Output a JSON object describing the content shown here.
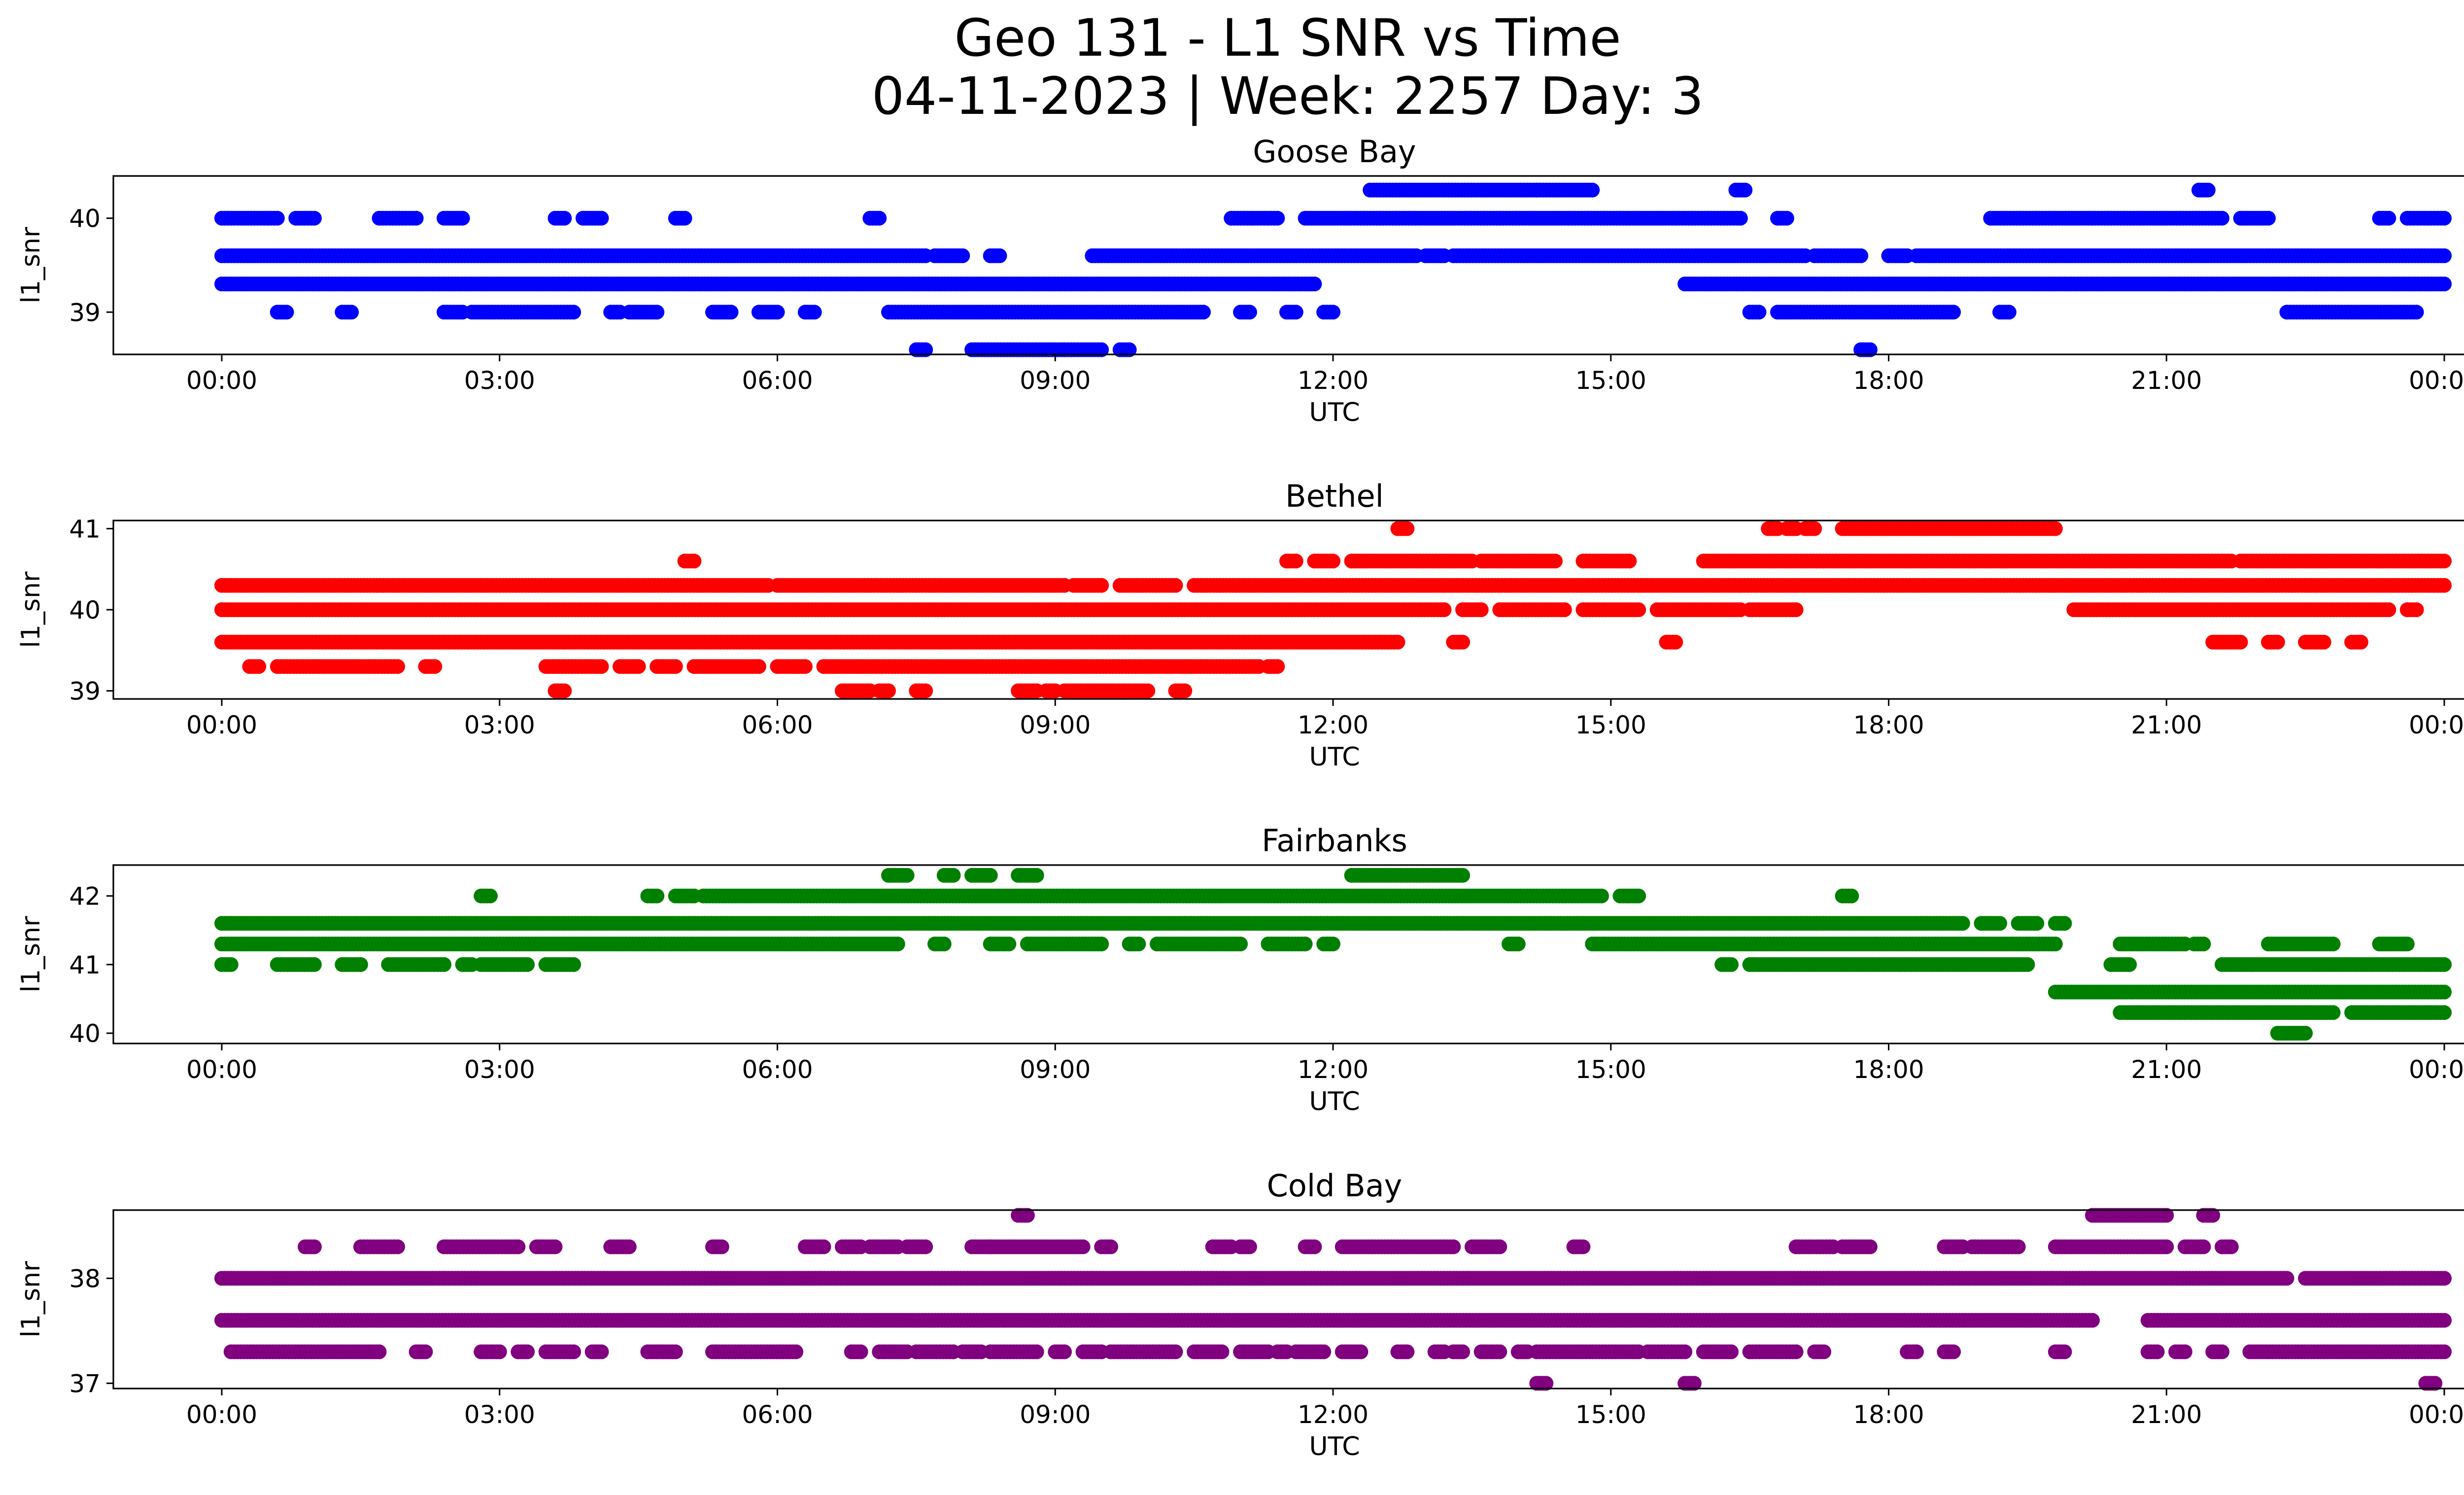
{
  "figure": {
    "title_line1": "Geo 131 - L1 SNR vs Time",
    "title_line2": "04-11-2023 | Week: 2257 Day: 3"
  },
  "chart_data": [
    {
      "type": "scatter",
      "title": "Goose Bay",
      "xlabel": "UTC",
      "ylabel": "l1_snr",
      "color": "#0000ff",
      "xlim": [
        "00:00",
        "24:00"
      ],
      "ylim": [
        38.55,
        40.45
      ],
      "x_ticks": [
        "00:00",
        "03:00",
        "06:00",
        "09:00",
        "12:00",
        "15:00",
        "18:00",
        "21:00",
        "00:00"
      ],
      "y_ticks": [
        39,
        40
      ],
      "series": [
        {
          "y": 40.3,
          "segments": [
            [
              12.4,
              14.2
            ],
            [
              14.2,
              14.8
            ],
            [
              16.35,
              16.45
            ],
            [
              21.35,
              21.45
            ]
          ]
        },
        {
          "y": 40.0,
          "segments": [
            [
              0.0,
              0.6
            ],
            [
              0.8,
              1.0
            ],
            [
              1.7,
              2.1
            ],
            [
              2.4,
              2.6
            ],
            [
              3.6,
              3.7
            ],
            [
              3.9,
              4.1
            ],
            [
              4.9,
              5.0
            ],
            [
              7.0,
              7.1
            ],
            [
              10.9,
              11.4
            ],
            [
              11.7,
              16.4
            ],
            [
              16.8,
              16.9
            ],
            [
              19.1,
              21.6
            ],
            [
              21.8,
              22.1
            ],
            [
              23.3,
              23.4
            ],
            [
              23.6,
              24.0
            ]
          ]
        },
        {
          "y": 39.6,
          "segments": [
            [
              0.0,
              7.6
            ],
            [
              7.7,
              8.0
            ],
            [
              8.3,
              8.4
            ],
            [
              9.4,
              12.9
            ],
            [
              13.0,
              13.2
            ],
            [
              13.3,
              17.1
            ],
            [
              17.2,
              17.7
            ],
            [
              18.0,
              18.2
            ],
            [
              18.3,
              24.0
            ]
          ]
        },
        {
          "y": 39.3,
          "segments": [
            [
              0.0,
              11.8
            ],
            [
              15.8,
              24.0
            ]
          ]
        },
        {
          "y": 39.0,
          "segments": [
            [
              0.6,
              0.7
            ],
            [
              1.3,
              1.4
            ],
            [
              2.4,
              2.6
            ],
            [
              2.7,
              3.8
            ],
            [
              4.2,
              4.3
            ],
            [
              4.4,
              4.7
            ],
            [
              5.3,
              5.5
            ],
            [
              5.8,
              6.0
            ],
            [
              6.3,
              6.4
            ],
            [
              7.2,
              10.6
            ],
            [
              11.0,
              11.1
            ],
            [
              11.5,
              11.6
            ],
            [
              11.9,
              12.0
            ],
            [
              16.5,
              16.6
            ],
            [
              16.8,
              18.7
            ],
            [
              19.2,
              19.3
            ],
            [
              22.3,
              23.7
            ]
          ]
        },
        {
          "y": 38.6,
          "segments": [
            [
              7.5,
              7.6
            ],
            [
              8.1,
              9.1
            ],
            [
              9.1,
              9.5
            ],
            [
              9.7,
              9.8
            ],
            [
              17.7,
              17.8
            ]
          ]
        }
      ]
    },
    {
      "type": "scatter",
      "title": "Bethel",
      "xlabel": "UTC",
      "ylabel": "l1_snr",
      "color": "#ff0000",
      "xlim": [
        "00:00",
        "24:00"
      ],
      "ylim": [
        38.9,
        41.1
      ],
      "x_ticks": [
        "00:00",
        "03:00",
        "06:00",
        "09:00",
        "12:00",
        "15:00",
        "18:00",
        "21:00",
        "00:00"
      ],
      "y_ticks": [
        39,
        40,
        41
      ],
      "series": [
        {
          "y": 41.0,
          "segments": [
            [
              12.7,
              12.8
            ],
            [
              16.7,
              16.8
            ],
            [
              16.9,
              17.0
            ],
            [
              17.1,
              17.2
            ],
            [
              17.5,
              19.8
            ]
          ]
        },
        {
          "y": 40.6,
          "segments": [
            [
              5.0,
              5.1
            ],
            [
              11.5,
              11.6
            ],
            [
              11.8,
              12.0
            ],
            [
              12.2,
              13.5
            ],
            [
              13.6,
              14.4
            ],
            [
              14.7,
              15.2
            ],
            [
              16.0,
              21.7
            ],
            [
              21.8,
              24.0
            ]
          ]
        },
        {
          "y": 40.3,
          "segments": [
            [
              0.0,
              5.9
            ],
            [
              6.0,
              9.1
            ],
            [
              9.2,
              9.5
            ],
            [
              9.7,
              10.3
            ],
            [
              10.5,
              24.0
            ]
          ]
        },
        {
          "y": 40.0,
          "segments": [
            [
              0.0,
              13.2
            ],
            [
              13.4,
              13.6
            ],
            [
              13.8,
              14.5
            ],
            [
              14.7,
              15.3
            ],
            [
              15.5,
              16.4
            ],
            [
              16.5,
              17.0
            ],
            [
              20.0,
              23.4
            ],
            [
              23.6,
              23.7
            ]
          ]
        },
        {
          "y": 39.6,
          "segments": [
            [
              0.0,
              12.7
            ],
            [
              13.3,
              13.4
            ],
            [
              15.6,
              15.7
            ],
            [
              21.5,
              21.8
            ],
            [
              22.1,
              22.2
            ],
            [
              22.5,
              22.7
            ],
            [
              23.0,
              23.1
            ]
          ]
        },
        {
          "y": 39.3,
          "segments": [
            [
              0.3,
              0.4
            ],
            [
              0.6,
              1.9
            ],
            [
              2.2,
              2.3
            ],
            [
              3.5,
              4.1
            ],
            [
              4.3,
              4.5
            ],
            [
              4.7,
              4.9
            ],
            [
              5.1,
              5.8
            ],
            [
              6.0,
              6.3
            ],
            [
              6.5,
              11.2
            ],
            [
              11.3,
              11.4
            ]
          ]
        },
        {
          "y": 39.0,
          "segments": [
            [
              3.6,
              3.7
            ],
            [
              6.7,
              7.0
            ],
            [
              7.1,
              7.2
            ],
            [
              7.5,
              7.6
            ],
            [
              8.6,
              8.8
            ],
            [
              8.9,
              9.0
            ],
            [
              9.1,
              10.0
            ],
            [
              10.3,
              10.4
            ]
          ]
        }
      ]
    },
    {
      "type": "scatter",
      "title": "Fairbanks",
      "xlabel": "UTC",
      "ylabel": "l1_snr",
      "color": "#008000",
      "xlim": [
        "00:00",
        "24:00"
      ],
      "ylim": [
        39.85,
        42.45
      ],
      "x_ticks": [
        "00:00",
        "03:00",
        "06:00",
        "09:00",
        "12:00",
        "15:00",
        "18:00",
        "21:00",
        "00:00"
      ],
      "y_ticks": [
        40,
        41,
        42
      ],
      "series": [
        {
          "y": 42.3,
          "segments": [
            [
              7.2,
              7.4
            ],
            [
              7.8,
              7.9
            ],
            [
              8.1,
              8.3
            ],
            [
              8.6,
              8.8
            ],
            [
              12.2,
              13.4
            ]
          ]
        },
        {
          "y": 42.0,
          "segments": [
            [
              2.8,
              2.9
            ],
            [
              4.6,
              4.7
            ],
            [
              4.9,
              5.1
            ],
            [
              5.2,
              14.9
            ],
            [
              15.1,
              15.3
            ],
            [
              17.5,
              17.6
            ]
          ]
        },
        {
          "y": 41.6,
          "segments": [
            [
              0.0,
              18.8
            ],
            [
              19.0,
              19.2
            ],
            [
              19.4,
              19.6
            ],
            [
              19.8,
              19.9
            ]
          ]
        },
        {
          "y": 41.3,
          "segments": [
            [
              0.0,
              7.3
            ],
            [
              7.7,
              7.8
            ],
            [
              8.3,
              8.5
            ],
            [
              8.7,
              9.5
            ],
            [
              9.8,
              9.9
            ],
            [
              10.1,
              11.0
            ],
            [
              11.3,
              11.7
            ],
            [
              11.9,
              12.0
            ],
            [
              13.9,
              14.0
            ],
            [
              14.8,
              19.8
            ],
            [
              20.5,
              21.2
            ],
            [
              21.3,
              21.4
            ],
            [
              22.1,
              22.8
            ],
            [
              23.3,
              23.6
            ]
          ]
        },
        {
          "y": 41.0,
          "segments": [
            [
              0.0,
              0.1
            ],
            [
              0.6,
              1.0
            ],
            [
              1.3,
              1.5
            ],
            [
              1.8,
              2.4
            ],
            [
              2.6,
              2.7
            ],
            [
              2.8,
              3.3
            ],
            [
              3.5,
              3.8
            ],
            [
              16.2,
              16.3
            ],
            [
              16.5,
              19.5
            ],
            [
              20.4,
              20.6
            ],
            [
              21.6,
              24.0
            ]
          ]
        },
        {
          "y": 40.6,
          "segments": [
            [
              19.8,
              24.0
            ]
          ]
        },
        {
          "y": 40.3,
          "segments": [
            [
              20.5,
              22.8
            ],
            [
              23.0,
              24.0
            ]
          ]
        },
        {
          "y": 40.0,
          "segments": [
            [
              22.2,
              22.5
            ]
          ]
        }
      ]
    },
    {
      "type": "scatter",
      "title": "Cold Bay",
      "xlabel": "UTC",
      "ylabel": "l1_snr",
      "color": "#800080",
      "xlim": [
        "00:00",
        "24:00"
      ],
      "ylim": [
        36.95,
        38.65
      ],
      "x_ticks": [
        "00:00",
        "03:00",
        "06:00",
        "09:00",
        "12:00",
        "15:00",
        "18:00",
        "21:00",
        "00:00"
      ],
      "y_ticks": [
        37,
        38
      ],
      "series": [
        {
          "y": 38.6,
          "segments": [
            [
              8.6,
              8.7
            ],
            [
              20.2,
              21.0
            ],
            [
              21.4,
              21.5
            ]
          ]
        },
        {
          "y": 38.3,
          "segments": [
            [
              0.9,
              1.0
            ],
            [
              1.5,
              1.9
            ],
            [
              2.4,
              3.2
            ],
            [
              3.4,
              3.6
            ],
            [
              4.2,
              4.4
            ],
            [
              5.3,
              5.4
            ],
            [
              6.3,
              6.5
            ],
            [
              6.7,
              6.9
            ],
            [
              7.0,
              7.3
            ],
            [
              7.4,
              7.6
            ],
            [
              8.1,
              8.3
            ],
            [
              8.3,
              9.3
            ],
            [
              9.5,
              9.6
            ],
            [
              10.7,
              10.9
            ],
            [
              11.0,
              11.1
            ],
            [
              11.7,
              11.8
            ],
            [
              12.1,
              13.3
            ],
            [
              13.5,
              13.8
            ],
            [
              14.6,
              14.7
            ],
            [
              17.0,
              17.4
            ],
            [
              17.5,
              17.8
            ],
            [
              18.6,
              18.8
            ],
            [
              18.9,
              19.4
            ],
            [
              19.8,
              21.0
            ],
            [
              21.2,
              21.4
            ],
            [
              21.6,
              21.7
            ]
          ]
        },
        {
          "y": 38.0,
          "segments": [
            [
              0.0,
              22.3
            ],
            [
              22.5,
              24.0
            ]
          ]
        },
        {
          "y": 37.6,
          "segments": [
            [
              0.0,
              20.2
            ],
            [
              20.8,
              24.0
            ]
          ]
        },
        {
          "y": 37.3,
          "segments": [
            [
              0.1,
              1.7
            ],
            [
              2.1,
              2.2
            ],
            [
              2.8,
              3.0
            ],
            [
              3.2,
              3.3
            ],
            [
              3.5,
              3.8
            ],
            [
              4.0,
              4.1
            ],
            [
              4.6,
              4.9
            ],
            [
              5.3,
              6.2
            ],
            [
              6.8,
              6.9
            ],
            [
              7.1,
              7.4
            ],
            [
              7.5,
              7.9
            ],
            [
              8.0,
              8.2
            ],
            [
              8.3,
              8.8
            ],
            [
              9.0,
              9.1
            ],
            [
              9.3,
              9.5
            ],
            [
              9.6,
              10.3
            ],
            [
              10.5,
              10.8
            ],
            [
              11.0,
              11.3
            ],
            [
              11.4,
              11.5
            ],
            [
              11.6,
              11.9
            ],
            [
              12.1,
              12.3
            ],
            [
              12.7,
              12.8
            ],
            [
              13.1,
              13.2
            ],
            [
              13.3,
              13.4
            ],
            [
              13.6,
              13.8
            ],
            [
              14.0,
              14.1
            ],
            [
              14.2,
              15.3
            ],
            [
              15.4,
              15.8
            ],
            [
              16.0,
              16.3
            ],
            [
              16.5,
              17.0
            ],
            [
              17.2,
              17.3
            ],
            [
              18.2,
              18.3
            ],
            [
              18.6,
              18.7
            ],
            [
              19.8,
              19.9
            ],
            [
              20.8,
              20.9
            ],
            [
              21.1,
              21.2
            ],
            [
              21.5,
              21.6
            ],
            [
              21.9,
              24.0
            ]
          ]
        },
        {
          "y": 37.0,
          "segments": [
            [
              14.2,
              14.3
            ],
            [
              15.8,
              15.9
            ],
            [
              23.8,
              23.9
            ]
          ]
        }
      ]
    }
  ]
}
